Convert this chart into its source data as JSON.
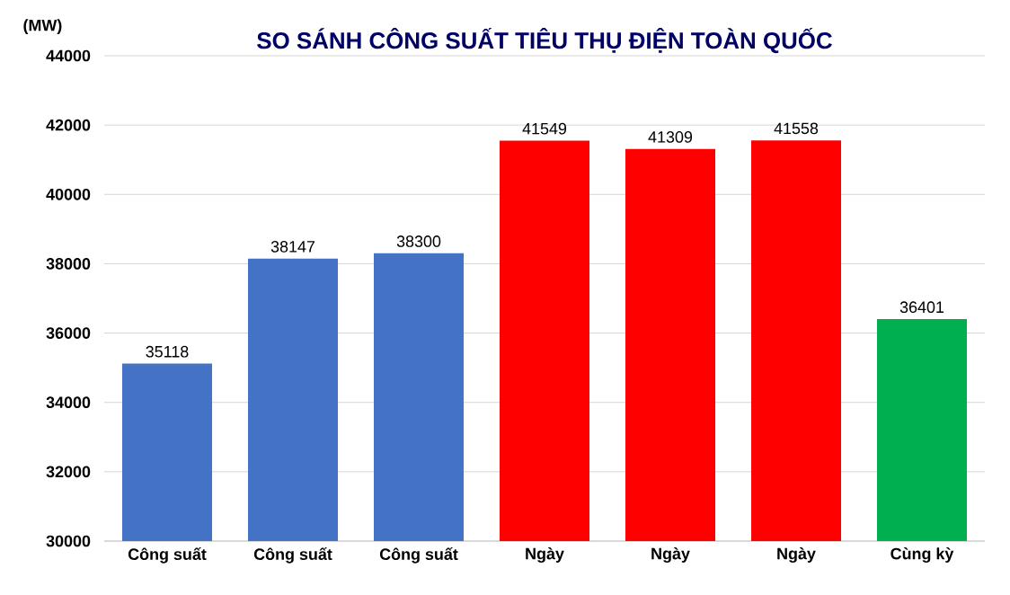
{
  "chart_data": {
    "type": "bar",
    "title": "SO SÁNH CÔNG SUẤT TIÊU THỤ ĐIỆN TOÀN QUỐC",
    "ylabel": "(MW)",
    "categories": [
      "Công suất",
      "Công suất",
      "Công suất",
      "Ngày",
      "Ngày",
      "Ngày",
      "Cùng kỳ"
    ],
    "values": [
      35118,
      38147,
      38300,
      41549,
      41309,
      41558,
      36401
    ],
    "colors": [
      "#4472c4",
      "#4472c4",
      "#4472c4",
      "#ff0000",
      "#ff0000",
      "#ff0000",
      "#00b050"
    ],
    "ylim": [
      30000,
      44000
    ],
    "yticks": [
      30000,
      32000,
      34000,
      36000,
      38000,
      40000,
      42000,
      44000
    ],
    "grid": "y",
    "data_labels": true
  }
}
